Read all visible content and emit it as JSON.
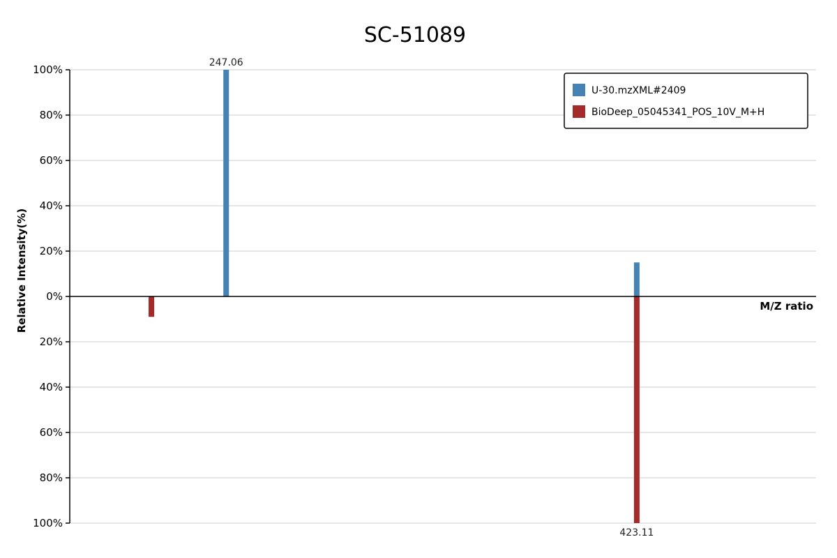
{
  "chart_data": {
    "type": "bar",
    "title": "SC-51089",
    "xlabel": "M/Z ratio",
    "ylabel": "Relative Intensity(%)",
    "ylim": [
      -100,
      100
    ],
    "y_ticks": [
      "100%",
      "80%",
      "60%",
      "40%",
      "20%",
      "0%",
      "20%",
      "40%",
      "60%",
      "80%",
      "100%"
    ],
    "y_tick_values": [
      100,
      80,
      60,
      40,
      20,
      0,
      -20,
      -40,
      -60,
      -80,
      -100
    ],
    "xlim": [
      180,
      500
    ],
    "grid": true,
    "legend_position": "top-right",
    "series": [
      {
        "name": "U-30.mzXML#2409",
        "color": "#4682b4",
        "direction": "up",
        "x": [
          247.06,
          423.11
        ],
        "values": [
          100,
          15
        ],
        "labels": [
          "247.06",
          ""
        ]
      },
      {
        "name": "BioDeep_05045341_POS_10V_M+H",
        "color": "#a52a2a",
        "direction": "down",
        "x": [
          215.0,
          423.11
        ],
        "values": [
          9,
          100
        ],
        "labels": [
          "",
          "423.11"
        ]
      }
    ]
  }
}
